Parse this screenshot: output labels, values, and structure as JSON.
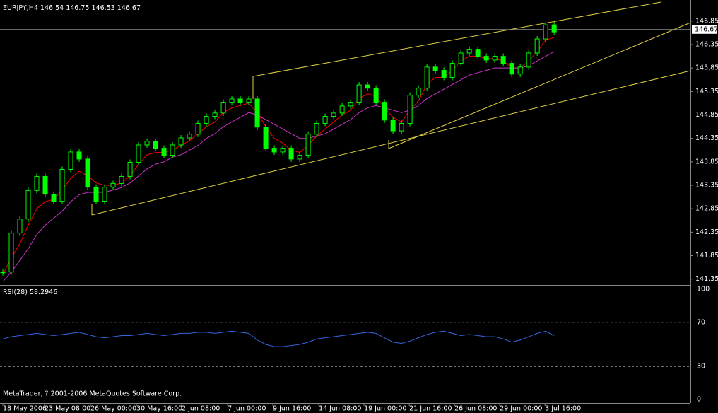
{
  "chart_data": [
    {
      "type": "candlestick",
      "header": {
        "symbol": "EURJPY,H4",
        "open": 146.54,
        "high": 146.75,
        "low": 146.53,
        "close": 146.67
      },
      "xlim": [
        -0.3,
        81.1
      ],
      "ylim": [
        141.27,
        147.3
      ],
      "yticks": [
        141.35,
        141.85,
        142.35,
        142.85,
        143.35,
        143.85,
        144.35,
        144.85,
        145.35,
        145.85,
        146.35,
        146.85
      ],
      "candles": {
        "color": "#00ff00",
        "values": [
          141.5,
          142.33,
          142.63,
          143.24,
          143.54,
          143.16,
          143.01,
          143.69,
          144.06,
          143.91,
          143.31,
          143.01,
          143.31,
          143.39,
          143.54,
          143.84,
          144.21,
          144.29,
          144.14,
          143.99,
          144.21,
          144.36,
          144.44,
          144.67,
          144.82,
          144.89,
          145.12,
          145.19,
          145.12,
          145.19,
          144.59,
          144.14,
          144.06,
          144.14,
          143.91,
          143.99,
          144.44,
          144.67,
          144.82,
          144.89,
          145.04,
          145.12,
          145.49,
          145.42,
          145.12,
          144.74,
          144.51,
          144.67,
          145.27,
          145.42,
          145.87,
          145.8,
          145.65,
          145.95,
          146.17,
          146.25,
          146.1,
          146.02,
          146.1,
          145.95,
          145.72,
          145.87,
          146.17,
          146.47,
          146.77,
          146.62
        ]
      },
      "lines": [
        {
          "color": "#ff0000",
          "values": [
            141.45,
            141.8,
            142.1,
            142.5,
            142.85,
            143.0,
            143.05,
            143.25,
            143.5,
            143.65,
            143.55,
            143.4,
            143.35,
            143.35,
            143.4,
            143.55,
            143.8,
            144.0,
            144.05,
            144.05,
            144.1,
            144.2,
            144.3,
            144.45,
            144.6,
            144.7,
            144.9,
            145.0,
            145.05,
            145.1,
            144.9,
            144.6,
            144.35,
            144.25,
            144.1,
            144.05,
            144.2,
            144.4,
            144.55,
            144.7,
            144.85,
            144.95,
            145.2,
            145.3,
            145.25,
            145.0,
            144.8,
            144.7,
            144.95,
            145.15,
            145.5,
            145.65,
            145.65,
            145.8,
            146.0,
            146.1,
            146.1,
            146.05,
            146.05,
            146.0,
            145.85,
            145.85,
            146.0,
            146.2,
            146.45,
            146.5
          ]
        },
        {
          "color": "#cc33cc",
          "values": [
            141.3,
            141.5,
            141.75,
            142.0,
            142.3,
            142.5,
            142.65,
            142.8,
            143.0,
            143.15,
            143.2,
            143.2,
            143.2,
            143.25,
            143.3,
            143.4,
            143.55,
            143.7,
            143.8,
            143.85,
            143.95,
            144.0,
            144.1,
            144.2,
            144.35,
            144.45,
            144.6,
            144.7,
            144.8,
            144.9,
            144.85,
            144.75,
            144.65,
            144.55,
            144.45,
            144.35,
            144.35,
            144.4,
            144.45,
            144.55,
            144.65,
            144.75,
            144.9,
            145.0,
            145.05,
            145.0,
            144.95,
            144.9,
            144.95,
            145.05,
            145.2,
            145.3,
            145.4,
            145.5,
            145.6,
            145.7,
            145.75,
            145.8,
            145.85,
            145.85,
            145.85,
            145.85,
            145.9,
            146.0,
            146.1,
            146.2
          ]
        }
      ]
    },
    {
      "type": "line",
      "title": "RSI(28)",
      "value": 58.2946,
      "color": "#3366dd",
      "values": [
        55,
        57,
        58,
        59,
        60,
        59,
        58,
        59,
        60,
        61,
        59,
        57,
        56,
        57,
        58,
        58,
        59,
        60,
        59,
        58,
        59,
        60,
        60,
        61,
        61,
        60,
        61,
        62,
        61,
        60,
        54,
        50,
        48,
        48,
        49,
        50,
        52,
        55,
        56,
        57,
        58,
        59,
        60,
        61,
        60,
        56,
        52,
        51,
        53,
        56,
        59,
        61,
        62,
        60,
        58,
        59,
        58,
        57,
        57,
        55,
        52,
        54,
        57,
        60,
        62,
        58
      ],
      "xlim": [
        -0.3,
        81.1
      ],
      "ylim": [
        0,
        100
      ],
      "yticks": [
        0,
        30,
        70,
        100
      ],
      "xticks": [
        {
          "value": 0,
          "label": "18 May 2006"
        },
        {
          "value": 4.92,
          "label": "23 May 08:00"
        },
        {
          "value": 10.33,
          "label": "26 May 00:00"
        },
        {
          "value": 15.75,
          "label": "30 May 16:00"
        },
        {
          "value": 21.08,
          "label": "2 Jun 08:00"
        },
        {
          "value": 26.5,
          "label": "7 Jun 00:00"
        },
        {
          "value": 31.83,
          "label": "9 Jun 16:00"
        },
        {
          "value": 37.25,
          "label": "14 Jun 08:00"
        },
        {
          "value": 42.58,
          "label": "19 Jun 00:00"
        },
        {
          "value": 47.92,
          "label": "21 Jun 16:00"
        },
        {
          "value": 53.25,
          "label": "26 Jun 08:00"
        },
        {
          "value": 58.58,
          "label": "29 Jun 00:00"
        },
        {
          "value": 63.92,
          "label": "3 Jul 16:00"
        }
      ],
      "footer": "MetaTrader, ? 2001-2006 MetaQuotes Software Corp."
    }
  ]
}
